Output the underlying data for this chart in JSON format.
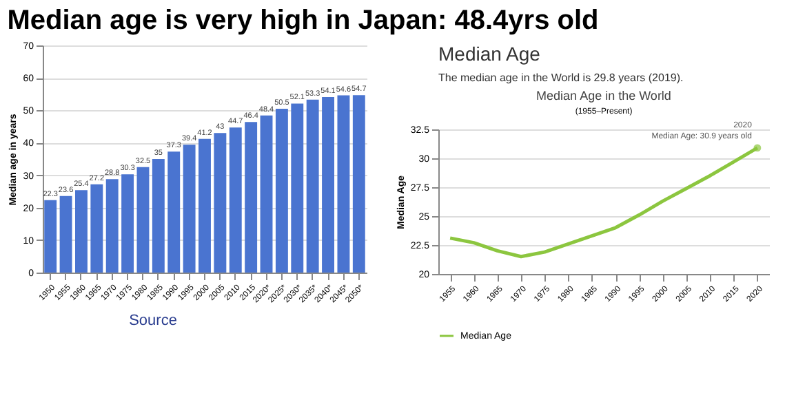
{
  "chart_data": [
    {
      "type": "bar",
      "title": "Median age is very high in Japan: 48.4yrs old",
      "ylabel": "Median age in years",
      "categories": [
        "1950",
        "1955",
        "1960",
        "1965",
        "1970",
        "1975",
        "1980",
        "1985",
        "1990",
        "1995",
        "2000",
        "2005",
        "2010",
        "2015",
        "2020*",
        "2025*",
        "2030*",
        "2035*",
        "2040*",
        "2045*",
        "2050*"
      ],
      "series": [
        {
          "color": "#4a74d0",
          "values": [
            22.3,
            23.6,
            25.4,
            27.2,
            28.8,
            30.3,
            32.5,
            35,
            37.3,
            39.4,
            41.2,
            43,
            44.7,
            46.4,
            48.4,
            50.5,
            52.1,
            53.3,
            54.1,
            54.6,
            54.7
          ]
        }
      ],
      "ylim": [
        0,
        70
      ],
      "yticks": [
        0,
        10,
        20,
        30,
        40,
        50,
        60,
        70
      ],
      "grid": "y",
      "data_labels": true,
      "annotations": [
        "Source"
      ]
    },
    {
      "type": "line",
      "title": "Median Age in the World",
      "subtitle": "(1955–Present)",
      "ylabel": "Median Age",
      "categories": [
        "1955",
        "1960",
        "1965",
        "1970",
        "1975",
        "1980",
        "1985",
        "1990",
        "1995",
        "2000",
        "2005",
        "2010",
        "2015",
        "2020"
      ],
      "series": [
        {
          "name": "Median Age",
          "color": "#8cc63f",
          "values": [
            23.1,
            22.7,
            22.0,
            21.5,
            21.9,
            22.6,
            23.3,
            24.0,
            25.1,
            26.3,
            27.4,
            28.5,
            29.7,
            30.9
          ]
        }
      ],
      "ylim": [
        20,
        32.5
      ],
      "yticks": [
        20,
        22.5,
        25,
        27.5,
        30,
        32.5
      ],
      "grid": "y",
      "legend": "bottom",
      "marker": "none",
      "line_style": "solid",
      "annotations": [
        "Median Age",
        "The median age in the World is 29.8 years (2019).",
        {
          "text": "2020\nMedian Age: 30.9 years old",
          "x": "2020",
          "y": 30.9
        }
      ]
    }
  ]
}
